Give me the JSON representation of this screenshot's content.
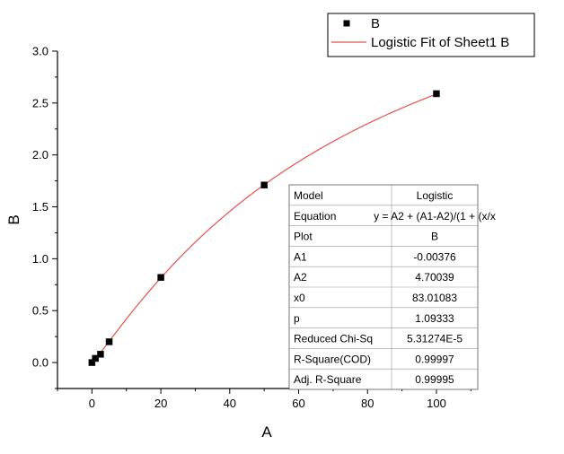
{
  "chart_data": {
    "type": "scatter",
    "xlabel": "A",
    "ylabel": "B",
    "xlim": [
      -10,
      112
    ],
    "ylim": [
      -0.25,
      3.0
    ],
    "x_ticks": [
      0,
      20,
      40,
      60,
      80,
      100
    ],
    "x_tick_labels": [
      "0",
      "20",
      "40",
      "60",
      "80",
      "100"
    ],
    "y_ticks": [
      0.0,
      0.5,
      1.0,
      1.5,
      2.0,
      2.5,
      3.0
    ],
    "y_tick_labels": [
      "0.0",
      "0.5",
      "1.0",
      "1.5",
      "2.0",
      "2.5",
      "3.0"
    ],
    "grid": false,
    "legend_position": "top-right",
    "series": [
      {
        "name": "B",
        "kind": "points",
        "marker": "square",
        "color": "#000000",
        "x": [
          0,
          1,
          2.5,
          5,
          20,
          50,
          100
        ],
        "y": [
          0.0,
          0.04,
          0.08,
          0.2,
          0.82,
          1.71,
          2.59
        ]
      },
      {
        "name": "Logistic Fit of Sheet1 B",
        "kind": "fit-line",
        "color": "#e8504a",
        "model": {
          "A1": -0.00376,
          "A2": 4.70039,
          "x0": 83.01083,
          "p": 1.09333
        },
        "x_range": [
          0,
          100
        ]
      }
    ],
    "stats_table": {
      "rows": [
        [
          "Model",
          "Logistic"
        ],
        [
          "Equation",
          "y = A2 + (A1-A2)/(1 + (x/x"
        ],
        [
          "Plot",
          "B"
        ],
        [
          "A1",
          "-0.00376"
        ],
        [
          "A2",
          "4.70039"
        ],
        [
          "x0",
          "83.01083"
        ],
        [
          "p",
          "1.09333"
        ],
        [
          "Reduced Chi-Sq",
          "5.31274E-5"
        ],
        [
          "R-Square(COD)",
          "0.99997"
        ],
        [
          "Adj. R-Square",
          "0.99995"
        ]
      ]
    }
  }
}
